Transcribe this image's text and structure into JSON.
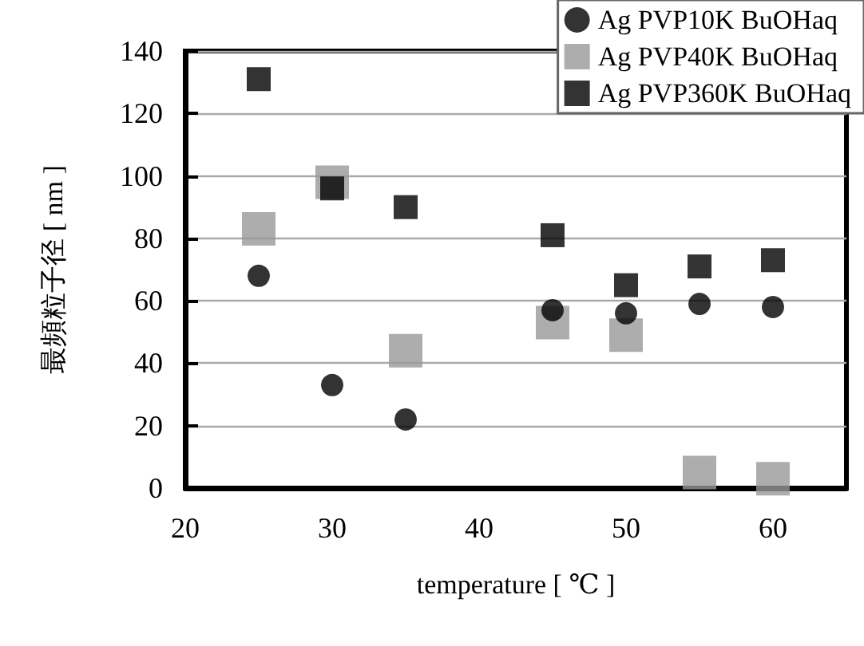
{
  "chart_data": {
    "type": "scatter",
    "xlabel": "temperature [ ℃ ]",
    "ylabel": "最頻粒子径 [ nm ]",
    "xlim": [
      20,
      65
    ],
    "xticks": [
      20,
      30,
      40,
      50,
      60
    ],
    "ylim": [
      0,
      140
    ],
    "yticks": [
      0,
      20,
      40,
      60,
      80,
      100,
      120,
      140
    ],
    "grid": "y",
    "legend": "top right",
    "series": [
      {
        "name": "Ag PVP10K BuOHaq",
        "color": "#000000",
        "marker": "circle",
        "x": [
          25,
          30,
          35,
          45,
          50,
          55,
          60
        ],
        "values": [
          68,
          33,
          22,
          57,
          56,
          59,
          58
        ]
      },
      {
        "name": "Ag PVP40K BuOHaq",
        "color": "#999999",
        "marker": "square",
        "x": [
          25,
          30,
          35,
          45,
          50,
          55,
          60
        ],
        "values": [
          83,
          98,
          44,
          53,
          49,
          5,
          3
        ]
      },
      {
        "name": "Ag PVP360K BuOHaq",
        "color": "#000000",
        "marker": "square",
        "x": [
          25,
          30,
          35,
          45,
          50,
          55,
          60
        ],
        "values": [
          131,
          96,
          90,
          81,
          65,
          71,
          73
        ]
      }
    ]
  }
}
